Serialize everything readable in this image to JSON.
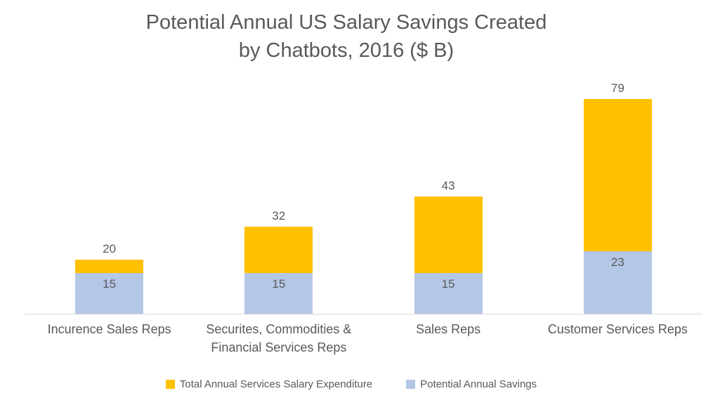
{
  "header": {
    "title_line1": "Potential Annual US Salary Savings Created",
    "title_line2": "by Chatbots, 2016 ($ B)"
  },
  "chart_data": {
    "type": "bar",
    "subtype": "stacked",
    "title": "Potential Annual US Salary Savings Created by Chatbots, 2016 ($ B)",
    "categories": [
      "Incurence Sales Reps",
      "Securites, Commodities & Financial Services Reps",
      "Sales Reps",
      "Customer Services Reps"
    ],
    "series": [
      {
        "name": "Potential Annual Savings",
        "color": "#b4c7e7",
        "values": [
          15,
          15,
          15,
          23
        ],
        "represents": "bottom-blue-segment",
        "label_position": "inside-top"
      },
      {
        "name": "Total Annual Services Salary Expenditure",
        "color": "#ffc000",
        "values": [
          20,
          32,
          43,
          79
        ],
        "represents": "stack-total",
        "label_position": "above-bar"
      }
    ],
    "legend_order": [
      1,
      0
    ],
    "legend_position": "bottom",
    "grid": false,
    "ylim": [
      0,
      88
    ],
    "axis_line_color": "#d9d9d9",
    "text_color": "#595959",
    "background_color": "#ffffff"
  }
}
